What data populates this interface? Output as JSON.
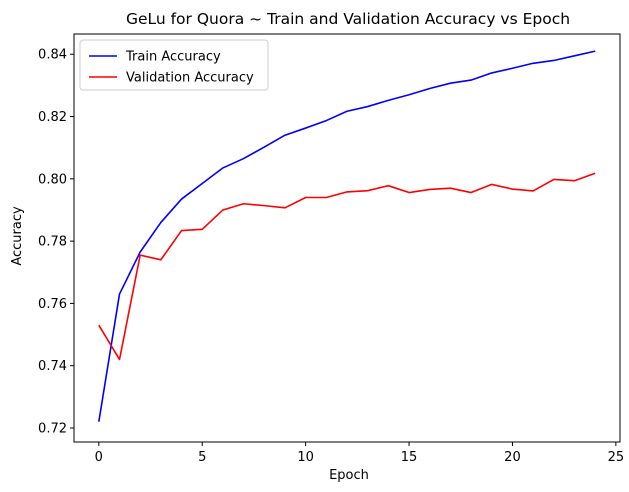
{
  "chart_data": {
    "type": "line",
    "title": "GeLu for Quora ~ Train and Validation Accuracy vs Epoch",
    "xlabel": "Epoch",
    "ylabel": "Accuracy",
    "xlim": [
      -1.2,
      25.2
    ],
    "ylim": [
      0.7155,
      0.8465
    ],
    "xticks": [
      0,
      5,
      10,
      15,
      20,
      25
    ],
    "xtick_labels": [
      "0",
      "5",
      "10",
      "15",
      "20",
      "25"
    ],
    "yticks": [
      0.72,
      0.74,
      0.76,
      0.78,
      0.8,
      0.82,
      0.84
    ],
    "ytick_labels": [
      "0.72",
      "0.74",
      "0.76",
      "0.78",
      "0.80",
      "0.82",
      "0.84"
    ],
    "grid": false,
    "legend_position": "top-left",
    "x": [
      0,
      1,
      2,
      3,
      4,
      5,
      6,
      7,
      8,
      9,
      10,
      11,
      12,
      13,
      14,
      15,
      16,
      17,
      18,
      19,
      20,
      21,
      22,
      23,
      24
    ],
    "series": [
      {
        "name": "Train Accuracy",
        "color": "#0000ff",
        "values": [
          0.722,
          0.763,
          0.7765,
          0.786,
          0.7935,
          0.7985,
          0.8035,
          0.8065,
          0.8102,
          0.814,
          0.8163,
          0.8187,
          0.8217,
          0.8232,
          0.8252,
          0.827,
          0.829,
          0.8307,
          0.8317,
          0.834,
          0.8355,
          0.8371,
          0.838,
          0.8395,
          0.841
        ]
      },
      {
        "name": "Validation Accuracy",
        "color": "#ff0000",
        "values": [
          0.753,
          0.742,
          0.7755,
          0.774,
          0.7834,
          0.7838,
          0.79,
          0.792,
          0.7914,
          0.7907,
          0.794,
          0.794,
          0.7958,
          0.7962,
          0.7978,
          0.7956,
          0.7966,
          0.797,
          0.7956,
          0.7982,
          0.7967,
          0.7961,
          0.7998,
          0.7994,
          0.8018
        ]
      }
    ]
  }
}
